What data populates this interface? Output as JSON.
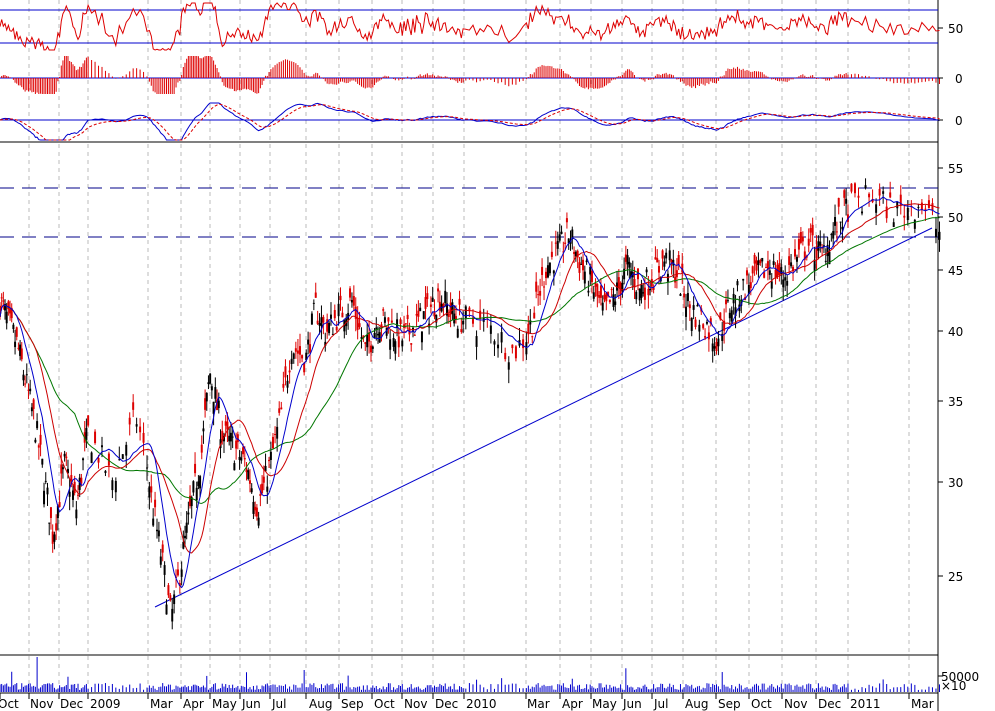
{
  "chart_data": {
    "type": "candlestick",
    "scale": "log",
    "colors": {
      "candle_down": "#dd0000",
      "candle_up": "#000000",
      "ma_fast": "#0000cc",
      "ma_mid": "#cc0000",
      "ma_slow": "#007700",
      "trendline": "#0000cc",
      "volume": "#0000cc",
      "grid": "#bbbbbb"
    },
    "x_labels": [
      "Oct",
      "Nov",
      "Dec",
      "2009",
      "Mar",
      "Apr",
      "May",
      "Jun",
      "Jul",
      "Aug",
      "Sep",
      "Oct",
      "Nov",
      "Dec",
      "2010",
      "Mar",
      "Apr",
      "May",
      "Jun",
      "Jul",
      "Aug",
      "Sep",
      "Oct",
      "Nov",
      "Dec",
      "2011",
      "Mar"
    ],
    "price_axis": {
      "ylim": [
        21.5,
        62
      ],
      "ticks": [
        25,
        30,
        35,
        40,
        45,
        50,
        55
      ]
    },
    "close_series": [
      {
        "t": 0.0,
        "v": 42.5
      },
      {
        "t": 0.6,
        "v": 39.0
      },
      {
        "t": 1.2,
        "v": 33.5
      },
      {
        "t": 1.8,
        "v": 27.0
      },
      {
        "t": 2.2,
        "v": 31.0
      },
      {
        "t": 2.6,
        "v": 28.5
      },
      {
        "t": 3.0,
        "v": 33.0
      },
      {
        "t": 3.4,
        "v": 30.0
      },
      {
        "t": 3.8,
        "v": 34.0
      },
      {
        "t": 4.1,
        "v": 29.0
      },
      {
        "t": 4.4,
        "v": 26.0
      },
      {
        "t": 4.7,
        "v": 23.0
      },
      {
        "t": 5.0,
        "v": 25.5
      },
      {
        "t": 5.4,
        "v": 29.0
      },
      {
        "t": 5.7,
        "v": 31.5
      },
      {
        "t": 6.0,
        "v": 37.0
      },
      {
        "t": 6.4,
        "v": 33.0
      },
      {
        "t": 6.8,
        "v": 32.0
      },
      {
        "t": 7.2,
        "v": 31.0
      },
      {
        "t": 7.6,
        "v": 28.5
      },
      {
        "t": 8.0,
        "v": 31.0
      },
      {
        "t": 8.3,
        "v": 34.0
      },
      {
        "t": 8.6,
        "v": 39.0
      },
      {
        "t": 9.0,
        "v": 38.0
      },
      {
        "t": 9.3,
        "v": 42.0
      },
      {
        "t": 9.6,
        "v": 40.0
      },
      {
        "t": 10.0,
        "v": 41.5
      },
      {
        "t": 10.4,
        "v": 42.5
      },
      {
        "t": 10.8,
        "v": 38.5
      },
      {
        "t": 11.2,
        "v": 41.0
      },
      {
        "t": 11.6,
        "v": 40.5
      },
      {
        "t": 12.0,
        "v": 39.5
      },
      {
        "t": 12.4,
        "v": 40.5
      },
      {
        "t": 12.8,
        "v": 41.5
      },
      {
        "t": 13.2,
        "v": 43.0
      },
      {
        "t": 13.6,
        "v": 41.5
      },
      {
        "t": 14.0,
        "v": 41.0
      },
      {
        "t": 14.4,
        "v": 40.5
      },
      {
        "t": 14.8,
        "v": 38.5
      },
      {
        "t": 15.2,
        "v": 41.0
      },
      {
        "t": 15.6,
        "v": 45.5
      },
      {
        "t": 16.0,
        "v": 47.0
      },
      {
        "t": 16.3,
        "v": 48.5
      },
      {
        "t": 16.6,
        "v": 46.0
      },
      {
        "t": 17.0,
        "v": 44.0
      },
      {
        "t": 17.4,
        "v": 41.5
      },
      {
        "t": 17.8,
        "v": 43.0
      },
      {
        "t": 18.2,
        "v": 45.5
      },
      {
        "t": 18.6,
        "v": 43.5
      },
      {
        "t": 19.0,
        "v": 44.5
      },
      {
        "t": 19.4,
        "v": 46.0
      },
      {
        "t": 19.8,
        "v": 45.0
      },
      {
        "t": 20.2,
        "v": 42.0
      },
      {
        "t": 20.6,
        "v": 41.0
      },
      {
        "t": 21.0,
        "v": 39.5
      },
      {
        "t": 21.4,
        "v": 42.0
      },
      {
        "t": 21.8,
        "v": 43.5
      },
      {
        "t": 22.2,
        "v": 44.5
      },
      {
        "t": 22.6,
        "v": 45.5
      },
      {
        "t": 23.0,
        "v": 44.5
      },
      {
        "t": 23.4,
        "v": 46.0
      },
      {
        "t": 23.8,
        "v": 47.5
      },
      {
        "t": 24.2,
        "v": 46.5
      },
      {
        "t": 24.6,
        "v": 49.0
      },
      {
        "t": 25.0,
        "v": 51.0
      },
      {
        "t": 25.4,
        "v": 52.0
      },
      {
        "t": 25.8,
        "v": 50.5
      },
      {
        "t": 26.2,
        "v": 51.5
      },
      {
        "t": 26.5,
        "v": 48.5
      }
    ],
    "volume_axis": {
      "ticks": [
        "50000"
      ],
      "multiplier": "×10"
    }
  },
  "labels": {
    "rsi": "50",
    "macd_hist": "0",
    "macd": "0",
    "y25": "25",
    "y30": "30",
    "y35": "35",
    "y40": "40",
    "y45": "45",
    "y50": "50",
    "y55": "55",
    "vol": "50000",
    "vol_mult": "×10"
  }
}
